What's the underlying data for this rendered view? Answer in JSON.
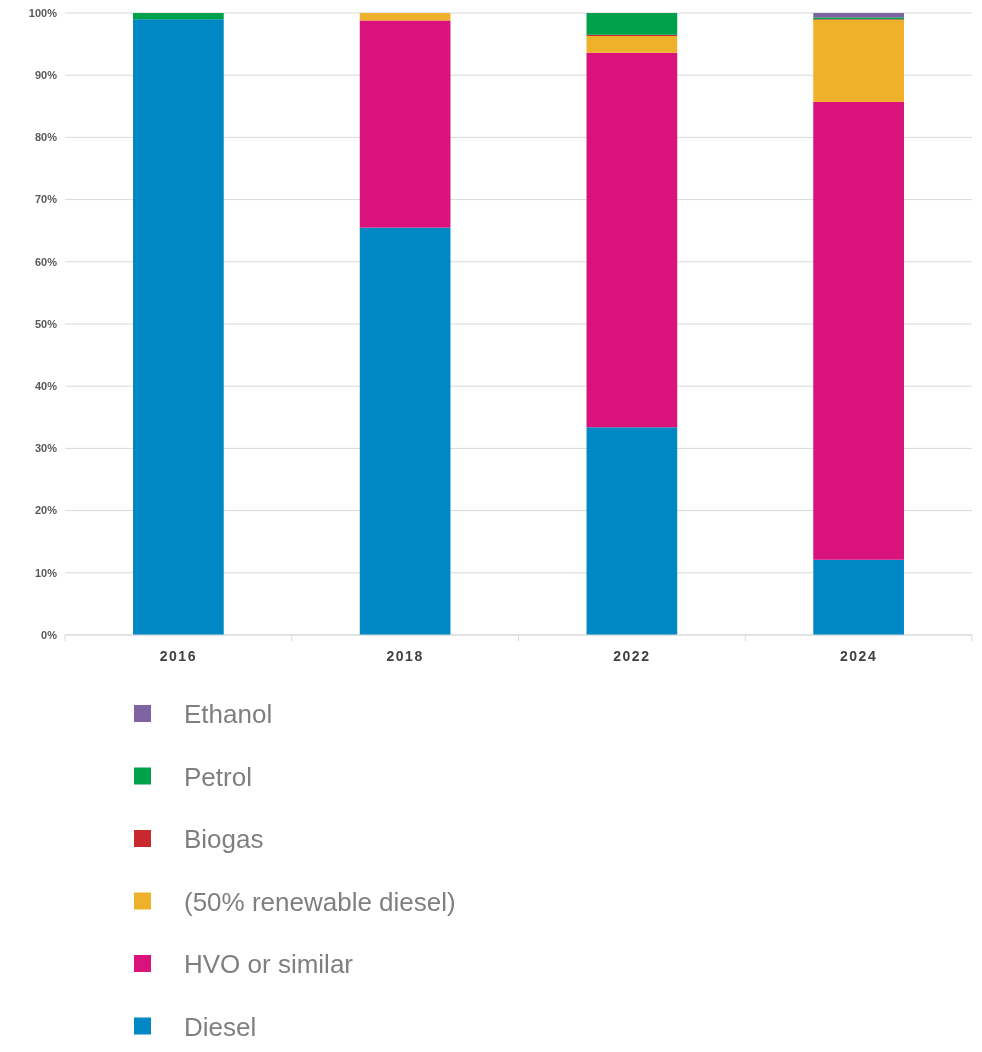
{
  "chart_data": {
    "type": "bar",
    "stacked": true,
    "categories": [
      "2016",
      "2018",
      "2022",
      "2024"
    ],
    "series": [
      {
        "name": "Diesel",
        "color": "#0088c4",
        "values": [
          99,
          65.5,
          33.4,
          12.1
        ]
      },
      {
        "name": "HVO or similar",
        "color": "#d9127c",
        "values": [
          0,
          33.3,
          60.2,
          73.6
        ]
      },
      {
        "name": "(50% renewable diesel)",
        "color": "#f0b12a",
        "values": [
          0,
          1.2,
          2.7,
          13.2
        ]
      },
      {
        "name": "Biogas",
        "color": "#c8282e",
        "values": [
          0,
          0,
          0.2,
          0.1
        ]
      },
      {
        "name": "Petrol",
        "color": "#00a14b",
        "values": [
          1,
          0,
          3.5,
          0.3
        ]
      },
      {
        "name": "Ethanol",
        "color": "#8064a2",
        "values": [
          0,
          0,
          0,
          0.7
        ]
      }
    ],
    "ylim": [
      0,
      100
    ],
    "yticks": [
      {
        "value": 0,
        "label": "0%"
      },
      {
        "value": 10,
        "label": "10%"
      },
      {
        "value": 20,
        "label": "20%"
      },
      {
        "value": 30,
        "label": "30%"
      },
      {
        "value": 40,
        "label": "40%"
      },
      {
        "value": 50,
        "label": "50%"
      },
      {
        "value": 60,
        "label": "60%"
      },
      {
        "value": 70,
        "label": "70%"
      },
      {
        "value": 80,
        "label": "80%"
      },
      {
        "value": 90,
        "label": "90%"
      },
      {
        "value": 100,
        "label": "100%"
      }
    ],
    "grid": "y",
    "legend": "bottom"
  }
}
